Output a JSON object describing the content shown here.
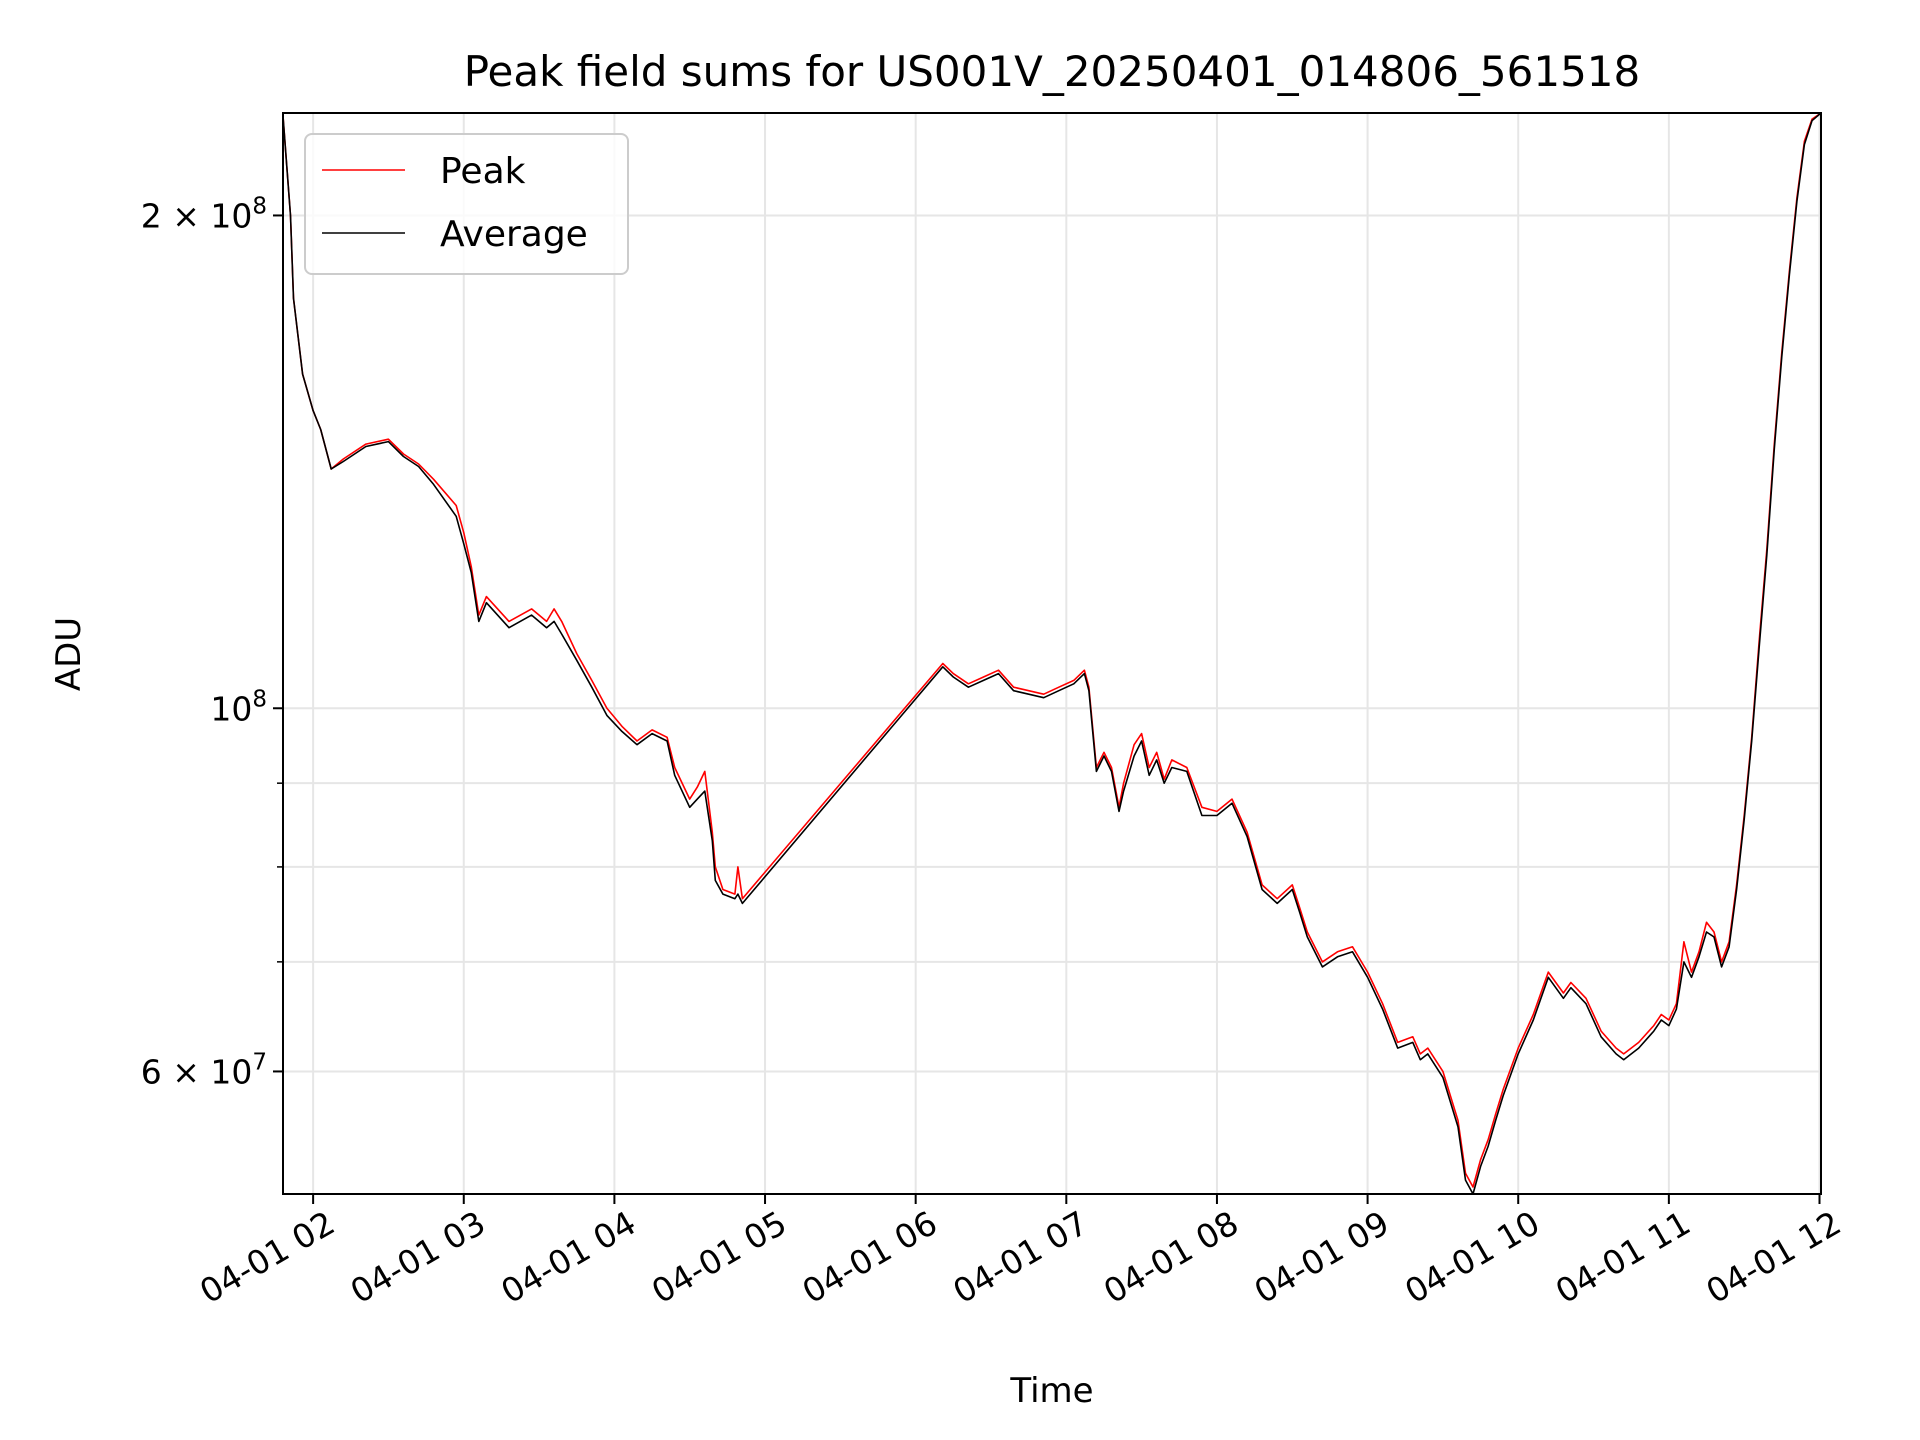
{
  "chart_data": {
    "type": "line",
    "title": "Peak field sums for US001V_20250401_014806_561518",
    "xlabel": "Time",
    "ylabel": "ADU",
    "yscale": "log",
    "xlim": [
      1.8,
      12.01
    ],
    "ylim": [
      50500000,
      231000000
    ],
    "x_unit": "hours on 04-01",
    "grid": true,
    "legend_position": "upper left",
    "x_ticks": [
      {
        "value": 2,
        "label": "04-01 02"
      },
      {
        "value": 3,
        "label": "04-01 03"
      },
      {
        "value": 4,
        "label": "04-01 04"
      },
      {
        "value": 5,
        "label": "04-01 05"
      },
      {
        "value": 6,
        "label": "04-01 06"
      },
      {
        "value": 7,
        "label": "04-01 07"
      },
      {
        "value": 8,
        "label": "04-01 08"
      },
      {
        "value": 9,
        "label": "04-01 09"
      },
      {
        "value": 10,
        "label": "04-01 10"
      },
      {
        "value": 11,
        "label": "04-01 11"
      },
      {
        "value": 12,
        "label": "04-01 12"
      }
    ],
    "y_major_ticks": [
      {
        "value": 60000000,
        "base": "6 × 10",
        "exp": "7"
      },
      {
        "value": 100000000,
        "base": "10",
        "exp": "8"
      },
      {
        "value": 200000000,
        "base": "2 × 10",
        "exp": "8"
      }
    ],
    "y_minor_ticks": [
      50000000,
      70000000,
      80000000,
      90000000,
      300000000
    ],
    "series": [
      {
        "name": "Peak",
        "color": "#ff0000",
        "x": [
          1.8,
          1.85,
          1.87,
          1.93,
          2.0,
          2.05,
          2.12,
          2.2,
          2.35,
          2.5,
          2.6,
          2.7,
          2.8,
          2.95,
          3.0,
          3.05,
          3.1,
          3.15,
          3.3,
          3.45,
          3.55,
          3.6,
          3.65,
          3.75,
          3.85,
          3.95,
          4.05,
          4.15,
          4.25,
          4.35,
          4.4,
          4.5,
          4.55,
          4.6,
          4.65,
          4.67,
          4.72,
          4.8,
          4.82,
          4.85,
          6.18,
          6.25,
          6.35,
          6.45,
          6.55,
          6.65,
          6.75,
          6.85,
          6.95,
          7.05,
          7.12,
          7.15,
          7.2,
          7.25,
          7.3,
          7.35,
          7.38,
          7.45,
          7.5,
          7.55,
          7.6,
          7.65,
          7.7,
          7.8,
          7.9,
          8.0,
          8.1,
          8.2,
          8.3,
          8.4,
          8.5,
          8.55,
          8.6,
          8.7,
          8.8,
          8.9,
          9.0,
          9.1,
          9.2,
          9.3,
          9.35,
          9.4,
          9.5,
          9.6,
          9.65,
          9.7,
          9.75,
          9.8,
          9.85,
          9.9,
          10.0,
          10.1,
          10.2,
          10.3,
          10.35,
          10.45,
          10.55,
          10.65,
          10.7,
          10.8,
          10.9,
          10.95,
          11.0,
          11.05,
          11.1,
          11.15,
          11.2,
          11.25,
          11.3,
          11.35,
          11.4,
          11.45,
          11.5,
          11.55,
          11.6,
          11.65,
          11.7,
          11.75,
          11.8,
          11.85,
          11.9,
          11.95,
          12.01
        ],
        "y": [
          230000000,
          200000000,
          178000000,
          160000000,
          152000000,
          148000000,
          140000000,
          142000000,
          145000000,
          146000000,
          143000000,
          141000000,
          138000000,
          133000000,
          128000000,
          122000000,
          114000000,
          117000000,
          113000000,
          115000000,
          113000000,
          115000000,
          113000000,
          108000000,
          104000000,
          100000000,
          97500000,
          95500000,
          97000000,
          96000000,
          92000000,
          88000000,
          89500000,
          91500000,
          84000000,
          80000000,
          77500000,
          77000000,
          80000000,
          76500000,
          106500000,
          105000000,
          103500000,
          104500000,
          105500000,
          103000000,
          102500000,
          102000000,
          103000000,
          104000000,
          105500000,
          103000000,
          92000000,
          94000000,
          92000000,
          87000000,
          90000000,
          95000000,
          96500000,
          92000000,
          94000000,
          90500000,
          93000000,
          92000000,
          87000000,
          86500000,
          88000000,
          84000000,
          78000000,
          76500000,
          78000000,
          75500000,
          73000000,
          70000000,
          71000000,
          71500000,
          69000000,
          66000000,
          62500000,
          63000000,
          61500000,
          62000000,
          60000000,
          56000000,
          52000000,
          51000000,
          53000000,
          54500000,
          56500000,
          58500000,
          62000000,
          65000000,
          69000000,
          67000000,
          68000000,
          66500000,
          63500000,
          62000000,
          61500000,
          62500000,
          64000000,
          65000000,
          64500000,
          66000000,
          72000000,
          69000000,
          71000000,
          74000000,
          73000000,
          70000000,
          72000000,
          78000000,
          86000000,
          96000000,
          110000000,
          125000000,
          145000000,
          165000000,
          185000000,
          205000000,
          222000000,
          229000000,
          231000000
        ]
      },
      {
        "name": "Average",
        "color": "#000000",
        "x": [
          1.8,
          1.85,
          1.87,
          1.93,
          2.0,
          2.05,
          2.12,
          2.2,
          2.35,
          2.5,
          2.6,
          2.7,
          2.8,
          2.95,
          3.0,
          3.05,
          3.1,
          3.15,
          3.3,
          3.45,
          3.55,
          3.6,
          3.65,
          3.75,
          3.85,
          3.95,
          4.05,
          4.15,
          4.25,
          4.35,
          4.4,
          4.5,
          4.55,
          4.6,
          4.65,
          4.67,
          4.72,
          4.8,
          4.82,
          4.85,
          6.18,
          6.25,
          6.35,
          6.45,
          6.55,
          6.65,
          6.75,
          6.85,
          6.95,
          7.05,
          7.12,
          7.15,
          7.2,
          7.25,
          7.3,
          7.35,
          7.38,
          7.45,
          7.5,
          7.55,
          7.6,
          7.65,
          7.7,
          7.8,
          7.9,
          8.0,
          8.1,
          8.2,
          8.3,
          8.4,
          8.5,
          8.55,
          8.6,
          8.7,
          8.8,
          8.9,
          9.0,
          9.1,
          9.2,
          9.3,
          9.35,
          9.4,
          9.5,
          9.6,
          9.65,
          9.7,
          9.75,
          9.8,
          9.85,
          9.9,
          10.0,
          10.1,
          10.2,
          10.3,
          10.35,
          10.45,
          10.55,
          10.65,
          10.7,
          10.8,
          10.9,
          10.95,
          11.0,
          11.05,
          11.1,
          11.15,
          11.2,
          11.25,
          11.3,
          11.35,
          11.4,
          11.45,
          11.5,
          11.55,
          11.6,
          11.65,
          11.7,
          11.75,
          11.8,
          11.85,
          11.9,
          11.95,
          12.01
        ],
        "y": [
          230000000,
          200000000,
          178000000,
          160000000,
          152000000,
          148000000,
          140000000,
          141500000,
          144500000,
          145500000,
          142500000,
          140500000,
          137000000,
          131000000,
          126000000,
          121000000,
          113000000,
          116000000,
          112000000,
          114000000,
          112000000,
          113000000,
          111000000,
          107000000,
          103000000,
          99000000,
          96800000,
          95000000,
          96500000,
          95500000,
          91000000,
          87000000,
          88000000,
          89000000,
          83000000,
          78500000,
          77000000,
          76500000,
          77000000,
          76000000,
          106000000,
          104500000,
          103000000,
          104000000,
          105000000,
          102500000,
          102000000,
          101500000,
          102500000,
          103500000,
          105000000,
          102500000,
          91500000,
          93500000,
          91500000,
          86500000,
          89000000,
          93500000,
          95500000,
          91000000,
          93000000,
          90000000,
          92000000,
          91500000,
          86000000,
          86000000,
          87500000,
          83500000,
          77500000,
          76000000,
          77500000,
          75000000,
          72500000,
          69500000,
          70500000,
          71000000,
          68500000,
          65500000,
          62000000,
          62500000,
          61000000,
          61500000,
          59500000,
          55500000,
          51500000,
          50500000,
          52500000,
          54000000,
          56000000,
          58000000,
          61500000,
          64500000,
          68500000,
          66500000,
          67500000,
          66000000,
          63000000,
          61500000,
          61000000,
          62000000,
          63500000,
          64500000,
          64000000,
          65500000,
          70000000,
          68500000,
          70500000,
          73000000,
          72500000,
          69500000,
          71500000,
          77500000,
          85500000,
          95500000,
          109000000,
          124000000,
          144000000,
          164000000,
          184000000,
          204000000,
          221000000,
          228500000,
          231000000
        ]
      }
    ]
  }
}
